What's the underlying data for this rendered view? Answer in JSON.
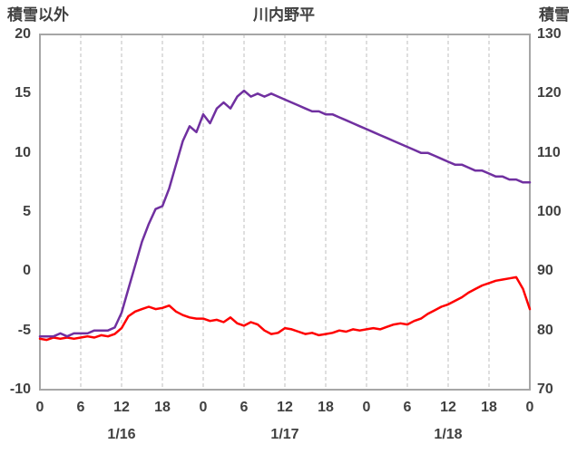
{
  "header": {
    "left_axis_title": "積雪以外",
    "chart_title": "川内野平",
    "right_axis_title": "積雪"
  },
  "colors": {
    "text": "#404040",
    "border": "#a6a6a6",
    "gridline": "#bfbfbf",
    "snow_line": "#7030a0",
    "other_line": "#ff0000"
  },
  "chart_data": {
    "type": "line",
    "title": "川内野平",
    "left_axis": {
      "title": "積雪以外",
      "min": -10,
      "max": 20,
      "ticks": [
        20,
        15,
        10,
        5,
        0,
        -5,
        -10
      ]
    },
    "right_axis": {
      "title": "積雪",
      "min": 70,
      "max": 130,
      "ticks": [
        130,
        120,
        110,
        100,
        90,
        80,
        70
      ]
    },
    "x_axis": {
      "total_hours": 72,
      "tick_interval_hours": 6,
      "tick_labels": [
        "0",
        "6",
        "12",
        "18",
        "0",
        "6",
        "12",
        "18",
        "0",
        "6",
        "12",
        "18",
        "0"
      ],
      "date_labels": [
        {
          "label": "1/16",
          "center_hour": 12
        },
        {
          "label": "1/17",
          "center_hour": 36
        },
        {
          "label": "1/18",
          "center_hour": 60
        }
      ]
    },
    "grid": {
      "vertical_dashed": true,
      "horizontal": false
    },
    "series": [
      {
        "name": "積雪",
        "axis": "right",
        "color": "#7030a0",
        "x_step_hours": 1,
        "values": [
          79,
          79,
          79,
          79.5,
          79,
          79.5,
          79.5,
          79.5,
          80,
          80,
          80,
          80.5,
          83,
          87,
          91,
          95,
          98,
          100.5,
          101,
          104,
          108,
          112,
          114.5,
          113.5,
          116.5,
          115,
          117.5,
          118.5,
          117.5,
          119.5,
          120.5,
          119.5,
          120,
          119.5,
          120,
          119.5,
          119,
          118.5,
          118,
          117.5,
          117,
          117,
          116.5,
          116.5,
          116,
          115.5,
          115,
          114.5,
          114,
          113.5,
          113,
          112.5,
          112,
          111.5,
          111,
          110.5,
          110,
          110,
          109.5,
          109,
          108.5,
          108,
          108,
          107.5,
          107,
          107,
          106.5,
          106,
          106,
          105.5,
          105.5,
          105,
          105
        ]
      },
      {
        "name": "積雪以外",
        "axis": "left",
        "color": "#ff0000",
        "x_step_hours": 1,
        "values": [
          -5.7,
          -5.8,
          -5.6,
          -5.7,
          -5.6,
          -5.7,
          -5.6,
          -5.5,
          -5.6,
          -5.4,
          -5.5,
          -5.3,
          -4.8,
          -3.8,
          -3.4,
          -3.2,
          -3.0,
          -3.2,
          -3.1,
          -2.9,
          -3.4,
          -3.7,
          -3.9,
          -4.0,
          -4.0,
          -4.2,
          -4.1,
          -4.3,
          -3.9,
          -4.4,
          -4.6,
          -4.3,
          -4.5,
          -5.0,
          -5.3,
          -5.2,
          -4.8,
          -4.9,
          -5.1,
          -5.3,
          -5.2,
          -5.4,
          -5.3,
          -5.2,
          -5.0,
          -5.1,
          -4.9,
          -5.0,
          -4.9,
          -4.8,
          -4.9,
          -4.7,
          -4.5,
          -4.4,
          -4.5,
          -4.2,
          -4.0,
          -3.6,
          -3.3,
          -3.0,
          -2.8,
          -2.5,
          -2.2,
          -1.8,
          -1.5,
          -1.2,
          -1.0,
          -0.8,
          -0.7,
          -0.6,
          -0.5,
          -1.5,
          -3.2
        ]
      }
    ]
  }
}
